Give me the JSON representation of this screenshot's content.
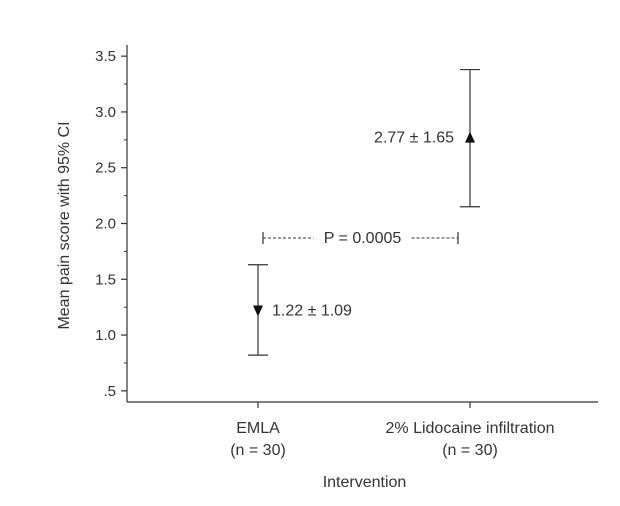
{
  "chart_data": {
    "type": "scatter",
    "subtype": "mean-with-error-bars",
    "title": "",
    "xlabel": "Intervention",
    "ylabel": "Mean pain score with 95% CI",
    "ylim": [
      0.4,
      3.6
    ],
    "y_ticks": [
      0.5,
      1.0,
      1.5,
      2.0,
      2.5,
      3.0,
      3.5
    ],
    "y_tick_labels": [
      ".5",
      "1.0",
      "1.5",
      "2.0",
      "2.5",
      "3.0",
      "3.5"
    ],
    "y_minor_ticks": [
      0.75,
      1.25,
      1.75,
      2.25,
      2.75,
      3.25
    ],
    "grid": false,
    "legend": "none",
    "categories": [
      {
        "label": "EMLA",
        "n_label": "(n = 30)"
      },
      {
        "label": "2% Lidocaine infiltration",
        "n_label": "(n = 30)"
      }
    ],
    "points": [
      {
        "category": "EMLA",
        "mean": 1.22,
        "ci_low": 0.82,
        "ci_high": 1.63,
        "marker": "triangle-down",
        "label": "1.22 ± 1.09"
      },
      {
        "category": "2% Lidocaine infiltration",
        "mean": 2.77,
        "ci_low": 2.15,
        "ci_high": 3.38,
        "marker": "triangle-up",
        "label": "2.77 ± 1.65"
      }
    ],
    "comparison": {
      "y": 1.87,
      "label": "P = 0.0005"
    },
    "color": "#333333"
  }
}
